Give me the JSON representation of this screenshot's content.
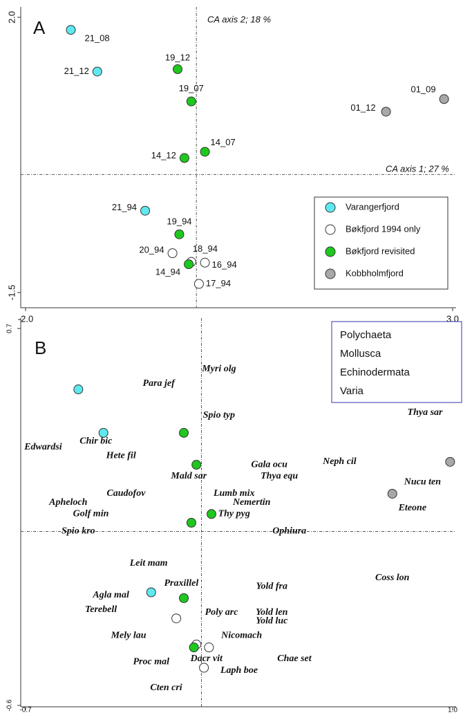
{
  "chart_data": [
    {
      "type": "scatter",
      "panel": "A",
      "xlim": [
        -2,
        3
      ],
      "ylim": [
        -1.5,
        2
      ],
      "xticks": [
        {
          "value": -2,
          "label": "-2.0"
        },
        {
          "value": 3,
          "label": "3.0"
        }
      ],
      "yticks": [
        -1.5,
        {
          "value": 2,
          "label": "2.0"
        }
      ],
      "annotations": [
        "CA axis 2; 18 %",
        "CA axis 1; 27 %"
      ],
      "legend": "lower right",
      "series": [
        {
          "name": "Varangerfjord",
          "color": "#5ee8f0",
          "x": [
            -1.47,
            -1.16,
            -0.6
          ],
          "values": [
            1.84,
            1.31,
            -0.46
          ],
          "labels": [
            "21_08",
            "21_12",
            "21_94"
          ]
        },
        {
          "name": "Bøkfjord 1994 only",
          "color": "#ffffff",
          "x": [
            -0.28,
            -0.06,
            0.1,
            0.03
          ],
          "values": [
            -1.0,
            -1.11,
            -1.12,
            -1.39
          ],
          "labels": [
            "20_94",
            "18_94",
            "16_94",
            "17_94"
          ]
        },
        {
          "name": "Bøkfjord revisited",
          "color": "#1ec81e",
          "x": [
            -0.22,
            -0.06,
            0.1,
            -0.14,
            -0.2,
            -0.09
          ],
          "values": [
            1.34,
            0.93,
            0.29,
            0.21,
            -0.76,
            -1.14
          ],
          "labels": [
            "19_12",
            "19_07",
            "14_07",
            "14_12",
            "19_94",
            "14_94"
          ]
        },
        {
          "name": "Kobbholmfjord",
          "color": "#a8a8a8",
          "x": [
            2.9,
            2.22
          ],
          "values": [
            0.96,
            0.8
          ],
          "labels": [
            "01_09",
            "01_12"
          ]
        }
      ]
    },
    {
      "type": "scatter",
      "panel": "B",
      "xlim": [
        -0.7,
        1
      ],
      "ylim": [
        -0.6,
        0.7
      ],
      "xticks": [
        -0.7,
        {
          "value": 1,
          "label": "1.0"
        }
      ],
      "yticks": [
        -0.6,
        0.7
      ],
      "legend": "upper right",
      "series": [
        {
          "color": "#5ee8f0",
          "x": [
            -0.49,
            -0.39,
            -0.2
          ],
          "values": [
            0.49,
            0.34,
            -0.21
          ]
        },
        {
          "color": "#ffffff",
          "x": [
            -0.1,
            -0.02,
            0.03,
            0.01
          ],
          "values": [
            -0.3,
            -0.39,
            -0.4,
            -0.47
          ]
        },
        {
          "color": "#1ec81e",
          "x": [
            -0.07,
            -0.02,
            0.04,
            -0.04,
            -0.07,
            -0.03
          ],
          "values": [
            0.34,
            0.23,
            0.06,
            0.03,
            -0.23,
            -0.4
          ]
        },
        {
          "color": "#a8a8a8",
          "x": [
            0.76,
            0.99
          ],
          "values": [
            0.13,
            0.24
          ]
        }
      ],
      "label_groups": [
        {
          "name": "Polychaeta",
          "color": "#8b1a1a",
          "labels": [
            "Myri olg",
            "Para jef",
            "Spio typ",
            "Chir bic",
            "Hete fil",
            "Gala ocu",
            "Neph cil",
            "Mald sar",
            "Lumb mix",
            "Apheloch",
            "Eteone",
            "Spio kro",
            "Leit mam",
            "Praxillel",
            "Coss lon",
            "Agla mal",
            "Terebell",
            "Poly arc",
            "Mely lau",
            "Nicomach",
            "Chae set",
            "Proc mal",
            "Laph boe"
          ],
          "x": [
            0.07,
            -0.17,
            0.07,
            -0.42,
            -0.32,
            0.27,
            0.55,
            -0.05,
            0.13,
            -0.53,
            0.84,
            -0.49,
            -0.21,
            -0.08,
            0.76,
            -0.36,
            -0.4,
            0.08,
            -0.29,
            0.16,
            0.37,
            -0.2,
            0.15
          ],
          "y": [
            0.56,
            0.51,
            0.4,
            0.31,
            0.26,
            0.23,
            0.24,
            0.19,
            0.13,
            0.1,
            0.08,
            0.0,
            -0.11,
            -0.18,
            -0.16,
            -0.22,
            -0.27,
            -0.28,
            -0.36,
            -0.36,
            -0.44,
            -0.45,
            -0.48
          ]
        },
        {
          "name": "Mollusca",
          "color": "#2e8b1e",
          "labels": [
            "Caudofov",
            "Thya equ",
            "Thy pyg",
            "Thya sar",
            "Nucu ten",
            "Yold fra",
            "Yold len",
            "Yold luc",
            "Dacr vit"
          ],
          "x": [
            -0.3,
            0.31,
            0.13,
            0.89,
            0.88,
            0.28,
            0.28,
            0.28,
            0.02
          ],
          "y": [
            0.13,
            0.19,
            0.06,
            0.41,
            0.17,
            -0.19,
            -0.28,
            -0.31,
            -0.44
          ]
        },
        {
          "name": "Echinodermata",
          "color": "#f26a22",
          "labels": [
            "Ophiura",
            "Cten cri"
          ],
          "x": [
            0.35,
            -0.14
          ],
          "y": [
            0.0,
            -0.54
          ]
        },
        {
          "name": "Varia",
          "color": "#888888",
          "labels": [
            "Edwardsi",
            "Nemertin",
            "Golf min"
          ],
          "x": [
            -0.63,
            0.2,
            -0.44
          ],
          "y": [
            0.29,
            0.1,
            0.06
          ]
        }
      ]
    }
  ]
}
